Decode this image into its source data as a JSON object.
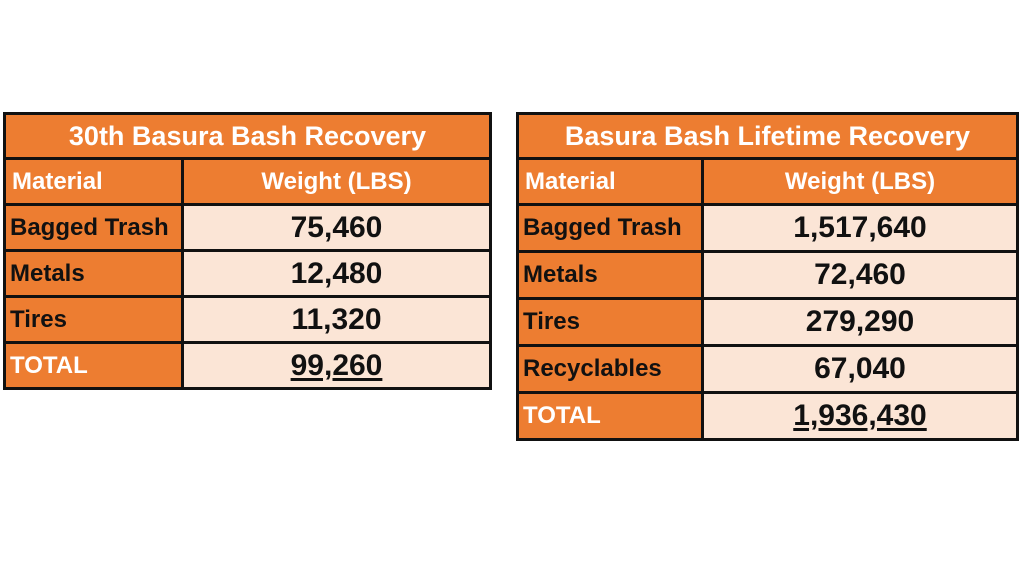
{
  "tables": [
    {
      "title": "30th Basura Bash Recovery",
      "headers": {
        "material": "Material",
        "weight": "Weight (LBS)"
      },
      "rows": [
        {
          "material": "Bagged Trash",
          "weight": "75,460"
        },
        {
          "material": "Metals",
          "weight": "12,480"
        },
        {
          "material": "Tires",
          "weight": "11,320"
        }
      ],
      "total": {
        "label": "TOTAL",
        "weight": "99,260"
      }
    },
    {
      "title": "Basura Bash Lifetime Recovery",
      "headers": {
        "material": "Material",
        "weight": "Weight (LBS)"
      },
      "rows": [
        {
          "material": "Bagged Trash",
          "weight": "1,517,640"
        },
        {
          "material": "Metals",
          "weight": "72,460"
        },
        {
          "material": "Tires",
          "weight": "279,290"
        },
        {
          "material": "Recyclables",
          "weight": "67,040"
        }
      ],
      "total": {
        "label": "TOTAL",
        "weight": "1,936,430"
      }
    }
  ],
  "colors": {
    "header_orange": "#ED7D31",
    "value_peach": "#FBE5D6",
    "border": "#111111"
  }
}
